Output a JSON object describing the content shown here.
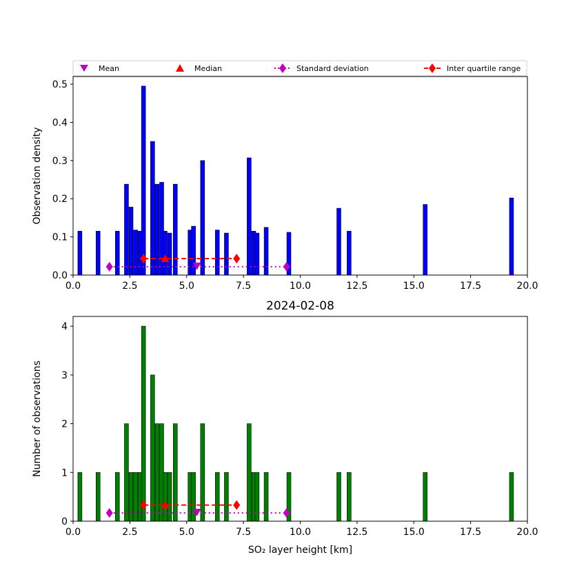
{
  "legend": {
    "items": [
      {
        "label": "Mean",
        "marker": "triangle-down",
        "color": "#bf00bf"
      },
      {
        "label": "Median",
        "marker": "triangle-up",
        "color": "#ff0000"
      },
      {
        "label": "Standard deviation",
        "marker": "diamond-dotted-line",
        "color": "#bf00bf"
      },
      {
        "label": "Inter quartile range",
        "marker": "diamond-dashed-line",
        "color": "#ff0000"
      }
    ]
  },
  "chart_data": [
    {
      "type": "bar",
      "panel": "top",
      "title": "",
      "xlabel": "",
      "ylabel": "Observation density",
      "xlim": [
        0,
        20
      ],
      "ylim": [
        0,
        0.52
      ],
      "xticks": [
        "0.0",
        "2.5",
        "5.0",
        "7.5",
        "10.0",
        "12.5",
        "15.0",
        "17.5",
        "20.0"
      ],
      "yticks": [
        "0.0",
        "0.1",
        "0.2",
        "0.3",
        "0.4",
        "0.5"
      ],
      "bar_color": "#0000ff",
      "bar_width": 0.18,
      "x": [
        0.3,
        1.1,
        1.95,
        2.35,
        2.55,
        2.75,
        2.95,
        3.1,
        3.5,
        3.7,
        3.9,
        4.05,
        4.25,
        4.5,
        5.15,
        5.3,
        5.7,
        6.35,
        6.75,
        7.75,
        7.95,
        8.1,
        8.5,
        9.5,
        11.7,
        12.15,
        15.5,
        19.3
      ],
      "values": [
        0.115,
        0.115,
        0.115,
        0.238,
        0.178,
        0.118,
        0.115,
        0.495,
        0.35,
        0.238,
        0.243,
        0.115,
        0.11,
        0.238,
        0.118,
        0.128,
        0.3,
        0.118,
        0.11,
        0.307,
        0.115,
        0.11,
        0.125,
        0.112,
        0.175,
        0.115,
        0.185,
        0.202
      ],
      "stats": {
        "mean": 5.45,
        "median": 4.05,
        "std_range": [
          1.6,
          9.4
        ],
        "iqr_range": [
          3.1,
          7.2
        ],
        "std_y": 0.022,
        "iqr_y": 0.043
      }
    },
    {
      "type": "bar",
      "panel": "bottom",
      "title": "2024-02-08",
      "xlabel": "SO₂ layer height [km]",
      "ylabel": "Number of observations",
      "xlim": [
        0,
        20
      ],
      "ylim": [
        0,
        4.2
      ],
      "xticks": [
        "0.0",
        "2.5",
        "5.0",
        "7.5",
        "10.0",
        "12.5",
        "15.0",
        "17.5",
        "20.0"
      ],
      "yticks": [
        "0",
        "1",
        "2",
        "3",
        "4"
      ],
      "bar_color": "#008000",
      "bar_width": 0.18,
      "x": [
        0.3,
        1.1,
        1.95,
        2.35,
        2.55,
        2.75,
        2.95,
        3.1,
        3.5,
        3.7,
        3.9,
        4.05,
        4.25,
        4.5,
        5.15,
        5.3,
        5.7,
        6.35,
        6.75,
        7.75,
        7.95,
        8.1,
        8.5,
        9.5,
        11.7,
        12.15,
        15.5,
        19.3
      ],
      "values": [
        1,
        1,
        1,
        2,
        1,
        1,
        1,
        4,
        3,
        2,
        2,
        1,
        1,
        2,
        1,
        1,
        2,
        1,
        1,
        2,
        1,
        1,
        1,
        1,
        1,
        1,
        1,
        1
      ],
      "stats": {
        "mean": 5.45,
        "median": 4.05,
        "std_range": [
          1.6,
          9.4
        ],
        "iqr_range": [
          3.1,
          7.2
        ],
        "std_y": 0.17,
        "iqr_y": 0.33
      }
    }
  ]
}
